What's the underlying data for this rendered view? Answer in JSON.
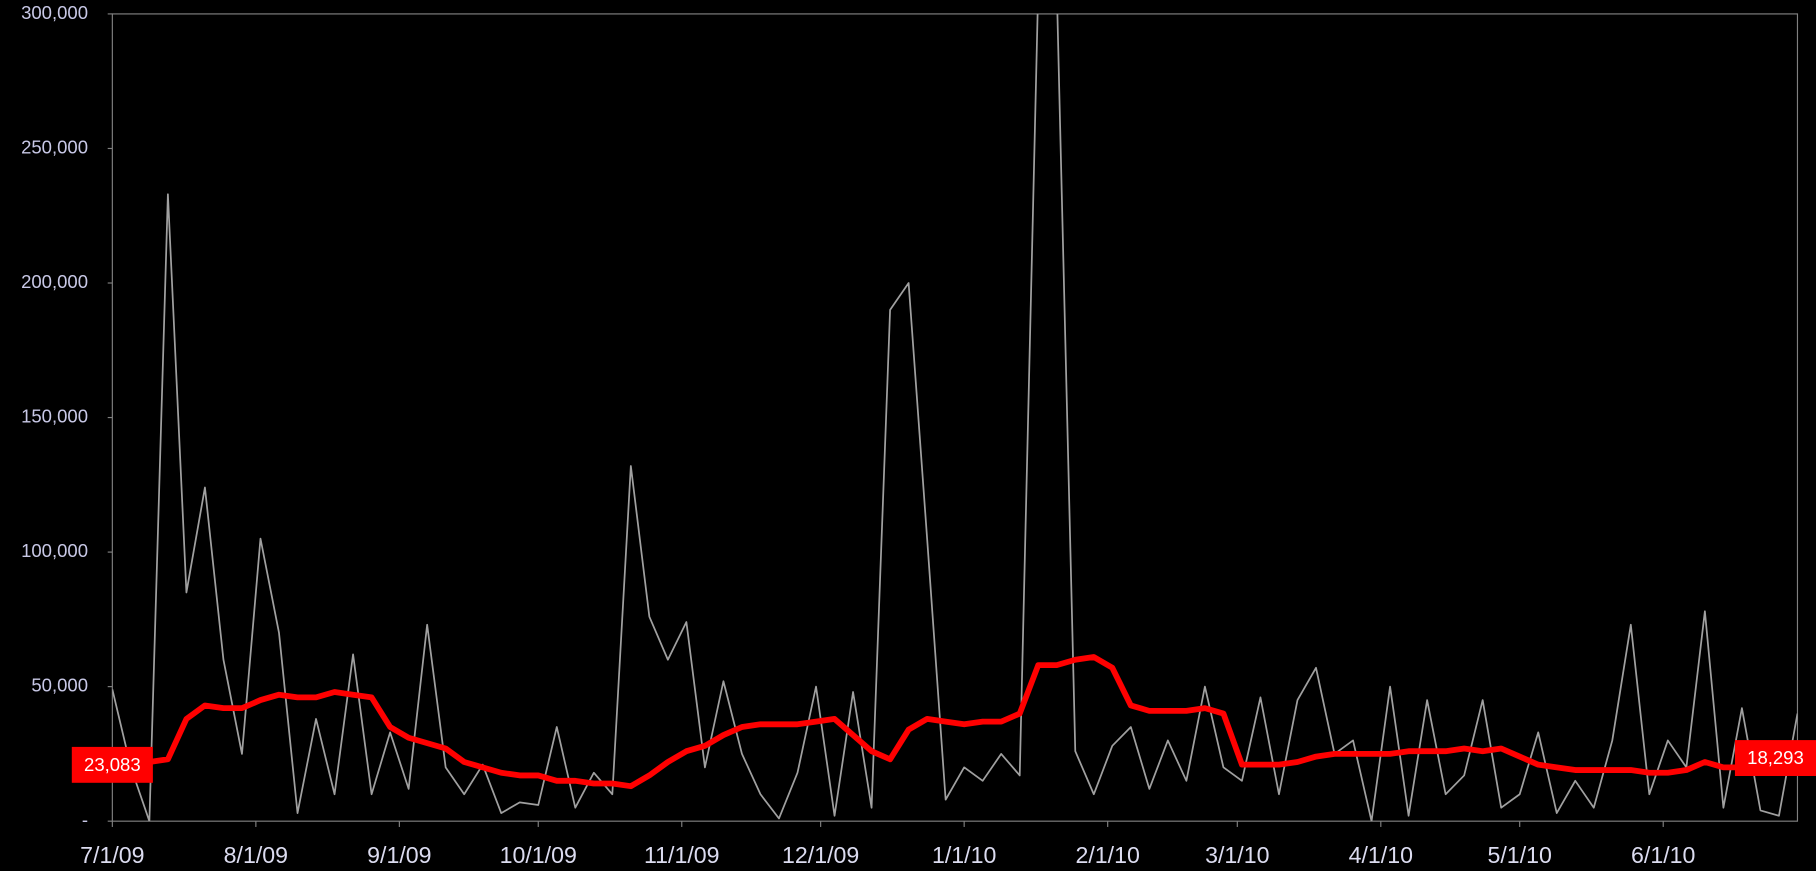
{
  "chart_data": {
    "type": "line",
    "x": [
      "7/1/09",
      "7/5/09",
      "7/9/09",
      "7/13/09",
      "7/17/09",
      "7/21/09",
      "7/25/09",
      "7/29/09",
      "8/2/09",
      "8/6/09",
      "8/10/09",
      "8/14/09",
      "8/18/09",
      "8/22/09",
      "8/26/09",
      "8/30/09",
      "9/3/09",
      "9/7/09",
      "9/11/09",
      "9/15/09",
      "9/19/09",
      "9/23/09",
      "9/27/09",
      "10/1/09",
      "10/5/09",
      "10/9/09",
      "10/13/09",
      "10/17/09",
      "10/21/09",
      "10/25/09",
      "10/29/09",
      "11/2/09",
      "11/6/09",
      "11/10/09",
      "11/14/09",
      "11/18/09",
      "11/22/09",
      "11/26/09",
      "11/30/09",
      "12/4/09",
      "12/8/09",
      "12/12/09",
      "12/16/09",
      "12/20/09",
      "12/24/09",
      "12/28/09",
      "1/1/10",
      "1/5/10",
      "1/9/10",
      "1/13/10",
      "1/17/10",
      "1/21/10",
      "1/25/10",
      "1/29/10",
      "2/2/10",
      "2/6/10",
      "2/10/10",
      "2/14/10",
      "2/18/10",
      "2/22/10",
      "2/26/10",
      "3/2/10",
      "3/6/10",
      "3/10/10",
      "3/14/10",
      "3/18/10",
      "3/22/10",
      "3/26/10",
      "3/30/10",
      "4/3/10",
      "4/7/10",
      "4/11/10",
      "4/15/10",
      "4/19/10",
      "4/23/10",
      "4/27/10",
      "5/1/10",
      "5/5/10",
      "5/9/10",
      "5/13/10",
      "5/17/10",
      "5/21/10",
      "5/25/10",
      "5/29/10",
      "6/2/10",
      "6/6/10",
      "6/10/10",
      "6/14/10",
      "6/18/10",
      "6/22/10",
      "6/26/10",
      "6/30/10"
    ],
    "series": [
      {
        "color": "#a0a0a0",
        "width": 1.5,
        "values": [
          49000,
          20000,
          0,
          233000,
          85000,
          124000,
          60000,
          25000,
          105000,
          70000,
          3000,
          38000,
          10000,
          62000,
          10000,
          33000,
          12000,
          73000,
          20000,
          10000,
          21000,
          3000,
          7000,
          6000,
          35000,
          5000,
          18000,
          10000,
          132000,
          76000,
          60000,
          74000,
          20000,
          52000,
          25000,
          10000,
          1000,
          18000,
          50000,
          2000,
          48000,
          5000,
          190000,
          200000,
          105000,
          8000,
          20000,
          15000,
          25000,
          17000,
          310000,
          310000,
          26000,
          10000,
          28000,
          35000,
          12000,
          30000,
          15000,
          50000,
          20000,
          15000,
          46000,
          10000,
          45000,
          57000,
          25000,
          30000,
          0,
          50000,
          2000,
          45000,
          10000,
          17000,
          45000,
          5000,
          10000,
          33000,
          3000,
          15000,
          5000,
          30000,
          73000,
          10000,
          30000,
          20000,
          78000,
          5000,
          42000,
          4000,
          2000,
          40000
        ]
      },
      {
        "color": "#ff0000",
        "width": 5,
        "values": [
          23083,
          23000,
          22000,
          23000,
          38000,
          43000,
          42000,
          42000,
          45000,
          47000,
          46000,
          46000,
          48000,
          47000,
          46000,
          35000,
          31000,
          29000,
          27000,
          22000,
          20000,
          18000,
          17000,
          17000,
          15000,
          15000,
          14000,
          14000,
          13000,
          17000,
          22000,
          26000,
          28000,
          32000,
          35000,
          36000,
          36000,
          36000,
          37000,
          38000,
          32000,
          26000,
          23000,
          34000,
          38000,
          37000,
          36000,
          37000,
          37000,
          40000,
          58000,
          58000,
          60000,
          61000,
          57000,
          43000,
          41000,
          41000,
          41000,
          42000,
          40000,
          21000,
          21000,
          21000,
          22000,
          24000,
          25000,
          25000,
          25000,
          25000,
          26000,
          26000,
          26000,
          27000,
          26000,
          27000,
          24000,
          21000,
          20000,
          19000,
          19000,
          19000,
          19000,
          18000,
          18000,
          19000,
          22000,
          20000,
          20000,
          19000,
          19000,
          18293
        ],
        "value_labels": [
          "23,083",
          null,
          null,
          null,
          null,
          null,
          null,
          null,
          null,
          null,
          null,
          null,
          null,
          null,
          null,
          null,
          null,
          null,
          null,
          null,
          null,
          null,
          null,
          null,
          null,
          null,
          null,
          null,
          null,
          null,
          null,
          null,
          null,
          null,
          null,
          null,
          null,
          null,
          null,
          null,
          null,
          null,
          null,
          null,
          null,
          null,
          null,
          null,
          null,
          null,
          null,
          null,
          null,
          null,
          null,
          null,
          null,
          null,
          null,
          null,
          null,
          null,
          null,
          null,
          null,
          null,
          null,
          null,
          null,
          null,
          null,
          null,
          null,
          null,
          null,
          null,
          null,
          null,
          null,
          null,
          null,
          null,
          null,
          null,
          null,
          null,
          null,
          null,
          null,
          null,
          null,
          "18,293"
        ]
      }
    ],
    "xlim": [
      "7/1/09",
      "6/30/10"
    ],
    "xticks": [
      "7/1/09",
      "8/1/09",
      "9/1/09",
      "10/1/09",
      "11/1/09",
      "12/1/09",
      "1/1/10",
      "2/1/10",
      "3/1/10",
      "4/1/10",
      "5/1/10",
      "6/1/10"
    ],
    "ylim": [
      0,
      300000
    ],
    "yticks": [
      {
        "value": 0,
        "label": "-"
      },
      {
        "value": 50000,
        "label": "50,000"
      },
      {
        "value": 100000,
        "label": "100,000"
      },
      {
        "value": 150000,
        "label": "150,000"
      },
      {
        "value": 200000,
        "label": "200,000"
      },
      {
        "value": 250000,
        "label": "250,000"
      },
      {
        "value": 300000,
        "label": "300,000"
      }
    ],
    "grid": false
  }
}
